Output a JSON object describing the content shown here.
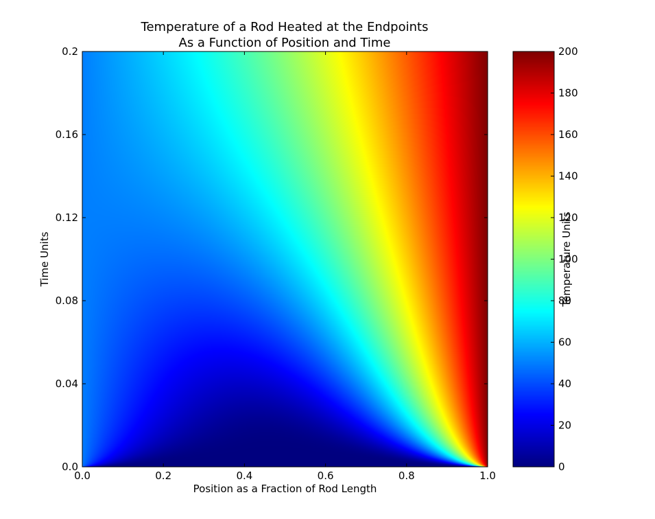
{
  "chart_data": {
    "type": "heatmap",
    "title_lines": [
      "Temperature of a Rod Heated at the Endpoints",
      "As a Function of Position and Time"
    ],
    "xlabel": "Position as a Fraction of Rod Length",
    "ylabel": "Time Units",
    "colorbar_label": "Temperature Units",
    "xlim": [
      0.0,
      1.0
    ],
    "ylim": [
      0.0,
      0.2
    ],
    "clim": [
      0,
      200
    ],
    "colormap": "jet",
    "xticks": [
      0.0,
      0.2,
      0.4,
      0.6,
      0.8,
      1.0
    ],
    "xtick_labels": [
      "0.0",
      "0.2",
      "0.4",
      "0.6",
      "0.8",
      "1.0"
    ],
    "yticks": [
      0.0,
      0.04,
      0.08,
      0.12,
      0.16,
      0.2
    ],
    "ytick_labels": [
      "0.0",
      "0.04",
      "0.08",
      "0.12",
      "0.16",
      "0.2"
    ],
    "colorbar_ticks": [
      0,
      20,
      40,
      60,
      80,
      100,
      120,
      140,
      160,
      180,
      200
    ],
    "colorbar_tick_labels": [
      "0",
      "20",
      "40",
      "60",
      "80",
      "100",
      "120",
      "140",
      "160",
      "180",
      "200"
    ],
    "grid": false,
    "boundary_conditions": {
      "left_temperature": 50,
      "right_temperature": 200,
      "initial_temperature": 0
    }
  }
}
